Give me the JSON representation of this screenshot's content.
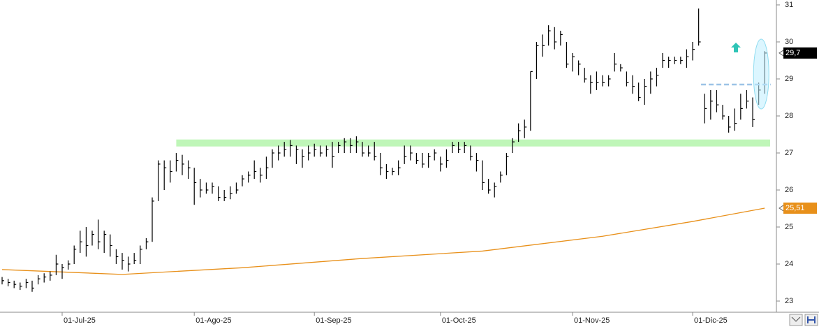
{
  "chart_data": {
    "type": "hlc",
    "color": "#000000",
    "xlim": [
      -0.35,
      128.95
    ],
    "ylim": [
      23,
      31
    ],
    "yticks": [
      23,
      24,
      25,
      26,
      27,
      28,
      29,
      30,
      31
    ],
    "xticks": [
      {
        "value": 10,
        "label": "01-Jul-25"
      },
      {
        "value": 32,
        "label": "01-Ago-25"
      },
      {
        "value": 52,
        "label": "01-Sep-25"
      },
      {
        "value": 73,
        "label": "01-Oct-25"
      },
      {
        "value": 95,
        "label": "01-Nov-25"
      },
      {
        "value": 115,
        "label": "01-Dic-25"
      }
    ],
    "high": [
      23.65,
      23.6,
      23.55,
      23.5,
      23.6,
      23.55,
      23.7,
      23.75,
      23.8,
      24.25,
      24.0,
      24.1,
      24.5,
      24.9,
      25.0,
      24.9,
      25.2,
      24.9,
      24.8,
      24.4,
      24.3,
      24.2,
      24.3,
      24.5,
      24.7,
      25.8,
      26.8,
      26.8,
      26.8,
      27.0,
      26.95,
      26.8,
      26.6,
      26.3,
      26.2,
      26.2,
      26.1,
      26.0,
      26.1,
      26.2,
      26.4,
      26.5,
      26.8,
      26.6,
      26.9,
      27.1,
      27.2,
      27.3,
      27.35,
      27.2,
      27.1,
      27.2,
      27.25,
      27.2,
      27.2,
      27.3,
      27.3,
      27.4,
      27.4,
      27.45,
      27.3,
      27.2,
      27.3,
      27.0,
      26.7,
      26.6,
      26.8,
      27.2,
      27.2,
      27.0,
      27.0,
      27.0,
      27.1,
      26.9,
      27.1,
      27.3,
      27.3,
      27.3,
      27.2,
      27.0,
      26.8,
      26.3,
      26.2,
      26.5,
      27.0,
      27.4,
      27.8,
      27.9,
      29.2,
      30.0,
      30.2,
      30.45,
      30.4,
      30.3,
      30.0,
      29.7,
      29.5,
      29.3,
      29.1,
      29.2,
      29.1,
      29.1,
      29.7,
      29.4,
      29.2,
      29.1,
      28.9,
      29.0,
      29.2,
      29.3,
      29.7,
      29.6,
      29.6,
      29.6,
      29.8,
      30.0,
      30.9,
      28.6,
      28.7,
      28.7,
      28.3,
      28.0,
      28.2,
      28.6,
      28.7,
      28.5,
      28.9,
      29.75
    ],
    "low": [
      23.45,
      23.4,
      23.35,
      23.3,
      23.35,
      23.25,
      23.45,
      23.5,
      23.55,
      23.7,
      23.6,
      23.85,
      24.0,
      24.3,
      24.2,
      24.5,
      24.4,
      24.3,
      24.2,
      24.0,
      23.85,
      23.8,
      24.0,
      24.0,
      24.4,
      24.6,
      25.7,
      26.0,
      26.2,
      26.5,
      26.4,
      26.3,
      25.6,
      25.8,
      25.9,
      25.9,
      25.7,
      25.7,
      25.75,
      25.9,
      26.1,
      26.2,
      26.3,
      26.2,
      26.3,
      26.6,
      26.8,
      26.9,
      26.9,
      26.7,
      26.6,
      26.8,
      26.9,
      26.9,
      26.9,
      26.6,
      27.0,
      27.0,
      27.0,
      27.0,
      26.9,
      26.9,
      26.8,
      26.4,
      26.3,
      26.4,
      26.4,
      26.7,
      26.8,
      26.7,
      26.6,
      26.6,
      26.8,
      26.5,
      26.6,
      27.0,
      27.0,
      27.0,
      26.8,
      26.5,
      26.0,
      25.9,
      25.8,
      26.2,
      26.4,
      27.0,
      27.3,
      27.4,
      27.6,
      29.0,
      29.6,
      29.9,
      29.8,
      29.9,
      29.3,
      29.2,
      29.1,
      28.9,
      28.6,
      28.7,
      28.8,
      28.8,
      29.2,
      29.2,
      28.8,
      28.6,
      28.4,
      28.3,
      28.6,
      28.8,
      29.3,
      29.3,
      29.4,
      29.4,
      29.3,
      29.5,
      29.9,
      27.8,
      27.9,
      28.1,
      27.9,
      27.55,
      27.6,
      27.9,
      28.2,
      27.7,
      28.3,
      28.6
    ],
    "close": [
      23.55,
      23.5,
      23.45,
      23.4,
      23.5,
      23.35,
      23.6,
      23.65,
      23.7,
      24.0,
      23.9,
      24.0,
      24.4,
      24.6,
      24.5,
      24.8,
      24.6,
      24.8,
      24.5,
      24.2,
      24.1,
      24.0,
      24.1,
      24.4,
      24.6,
      25.7,
      26.7,
      26.6,
      26.5,
      26.8,
      26.7,
      26.6,
      26.2,
      26.0,
      26.0,
      26.1,
      25.8,
      25.8,
      25.9,
      26.0,
      26.3,
      26.4,
      26.5,
      26.4,
      26.6,
      27.0,
      27.0,
      27.1,
      27.2,
      27.1,
      26.9,
      27.0,
      27.1,
      27.0,
      27.1,
      26.9,
      27.2,
      27.3,
      27.2,
      27.3,
      27.0,
      27.0,
      26.9,
      26.6,
      26.5,
      26.5,
      26.6,
      26.9,
      27.0,
      26.8,
      26.7,
      26.9,
      27.0,
      26.7,
      26.8,
      27.2,
      27.1,
      27.2,
      26.9,
      26.8,
      26.2,
      26.0,
      26.1,
      26.4,
      26.9,
      27.3,
      27.6,
      27.7,
      29.2,
      29.9,
      29.9,
      30.3,
      30.0,
      30.2,
      29.4,
      29.6,
      29.4,
      29.0,
      28.9,
      28.9,
      28.9,
      29.0,
      29.4,
      29.3,
      28.9,
      28.8,
      28.5,
      28.8,
      29.0,
      29.1,
      29.5,
      29.5,
      29.5,
      29.5,
      29.6,
      29.8,
      30.0,
      28.2,
      28.4,
      28.3,
      28.0,
      27.7,
      27.8,
      28.2,
      28.4,
      27.9,
      28.7,
      29.7
    ],
    "moving_average": {
      "color": "#e8901a",
      "x": [
        0,
        20,
        40,
        60,
        80,
        100,
        115,
        127
      ],
      "values": [
        23.85,
        23.72,
        23.9,
        24.15,
        24.35,
        24.75,
        25.15,
        25.51
      ]
    },
    "last_price": {
      "value": 29.7,
      "label": "29,7"
    },
    "ma_price": {
      "value": 25.51,
      "label": "25,51"
    },
    "support_level": 27.27,
    "resistance_level": 28.85
  }
}
